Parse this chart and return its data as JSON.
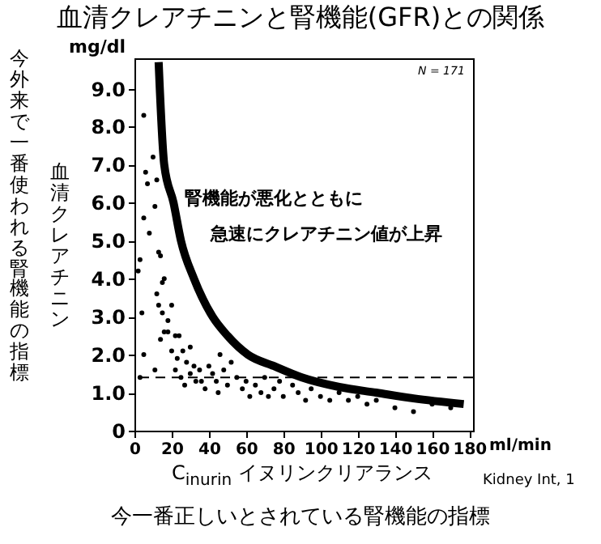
{
  "chart_data": {
    "type": "scatter",
    "title": "血清クレアチニンと腎機能(GFR)との関係",
    "xlabel": "C$_{inurin}$ イヌリンクリアランス",
    "ylabel": "mg/dl",
    "annotations": [
      "N = 171",
      "腎機能が悪化とともに",
      "急速にクレアチニン値が上昇",
      "血清クレアチニン",
      "今外来で一番使われる腎機能の指標",
      "今一番正しいとされている腎機能の指標",
      "Kidney Int, 1",
      "ml/min"
    ],
    "xlim": [
      0,
      182
    ],
    "ylim": [
      0,
      9.8
    ],
    "xticks": [
      0,
      20,
      40,
      60,
      80,
      100,
      120,
      140,
      160,
      180
    ],
    "yticks": [
      0,
      {
        "value": 1,
        "label": "1.0"
      },
      {
        "value": 2,
        "label": "2.0"
      },
      {
        "value": 3,
        "label": "3.0"
      },
      {
        "value": 4,
        "label": "4.0"
      },
      {
        "value": 5,
        "label": "5.0"
      },
      {
        "value": 6,
        "label": "6.0"
      },
      {
        "value": 7,
        "label": "7.0"
      },
      {
        "value": 8,
        "label": "8.0"
      },
      {
        "value": 9,
        "label": "9.0"
      }
    ],
    "grid": false,
    "ref_lines": [
      {
        "axis": "y",
        "value": 1.4,
        "line_style": "dashed",
        "color": "#000000"
      }
    ],
    "series": [
      {
        "type": "scatter",
        "color": "#000000",
        "marker": "circle",
        "x": [
          5,
          6,
          7,
          5,
          8,
          3,
          2,
          4,
          5,
          3,
          10,
          12,
          11,
          13,
          14,
          12,
          15,
          16,
          13,
          15,
          14,
          16,
          18,
          18,
          11,
          20,
          22,
          24,
          20,
          23,
          26,
          28,
          22,
          25,
          30,
          30,
          27,
          32,
          33,
          35,
          36,
          38,
          40,
          42,
          44,
          45,
          48,
          50,
          46,
          52,
          55,
          58,
          60,
          62,
          65,
          68,
          70,
          72,
          75,
          78,
          80,
          85,
          88,
          92,
          95,
          100,
          105,
          110,
          115,
          120,
          125,
          130,
          140,
          150,
          160,
          170
        ],
        "values": [
          8.3,
          6.8,
          6.5,
          5.6,
          5.2,
          4.5,
          4.2,
          3.1,
          2.0,
          1.4,
          7.2,
          6.6,
          5.9,
          4.7,
          4.6,
          3.6,
          3.9,
          4.0,
          3.3,
          3.1,
          2.4,
          2.6,
          2.9,
          2.6,
          1.6,
          3.3,
          2.5,
          2.5,
          2.1,
          1.9,
          2.1,
          1.8,
          1.6,
          1.4,
          2.2,
          1.5,
          1.2,
          1.7,
          1.3,
          1.6,
          1.3,
          1.1,
          1.7,
          1.5,
          1.3,
          1.0,
          1.6,
          1.2,
          2.0,
          1.8,
          1.4,
          1.1,
          1.3,
          0.9,
          1.2,
          1.0,
          1.4,
          0.9,
          1.1,
          1.3,
          0.9,
          1.2,
          1.0,
          0.8,
          1.1,
          0.9,
          0.8,
          1.0,
          0.8,
          0.9,
          0.7,
          0.8,
          0.6,
          0.5,
          0.7,
          0.6
        ]
      },
      {
        "type": "line",
        "color": "#000000",
        "x": [
          13,
          16,
          21,
          25,
          32,
          42,
          50,
          61,
          75,
          90,
          110,
          130,
          150,
          177
        ],
        "values": [
          9.7,
          7,
          6,
          5,
          4,
          3,
          2.5,
          2,
          1.7,
          1.4,
          1.15,
          1.0,
          0.85,
          0.7
        ]
      }
    ]
  }
}
